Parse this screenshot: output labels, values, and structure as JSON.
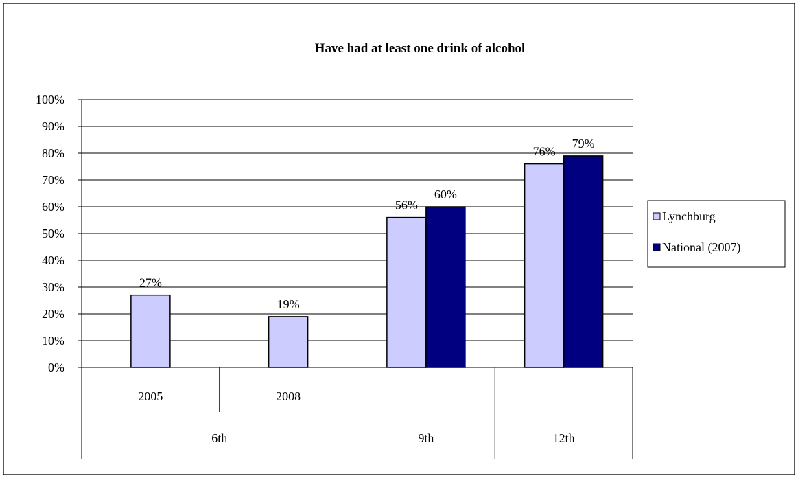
{
  "chart_data": {
    "type": "bar",
    "title": "Have had at least one drink of alcohol",
    "y_ticks": [
      "0%",
      "10%",
      "20%",
      "30%",
      "40%",
      "50%",
      "60%",
      "70%",
      "80%",
      "90%",
      "100%"
    ],
    "ylim": [
      0,
      100
    ],
    "grid": true,
    "legend_position": "right",
    "categories": [
      {
        "label": "2005",
        "group": "6th"
      },
      {
        "label": "2008",
        "group": "6th"
      },
      {
        "label": "",
        "group": "9th"
      },
      {
        "label": "",
        "group": "12th"
      }
    ],
    "groups": [
      "6th",
      "9th",
      "12th"
    ],
    "series": [
      {
        "name": "Lynchburg",
        "color": "#ccccff",
        "values": [
          27,
          19,
          56,
          76
        ],
        "labels": [
          "27%",
          "19%",
          "56%",
          "76%"
        ]
      },
      {
        "name": "National (2007)",
        "color": "#000080",
        "values": [
          null,
          null,
          60,
          79
        ],
        "labels": [
          "",
          "",
          "60%",
          "79%"
        ]
      }
    ]
  }
}
